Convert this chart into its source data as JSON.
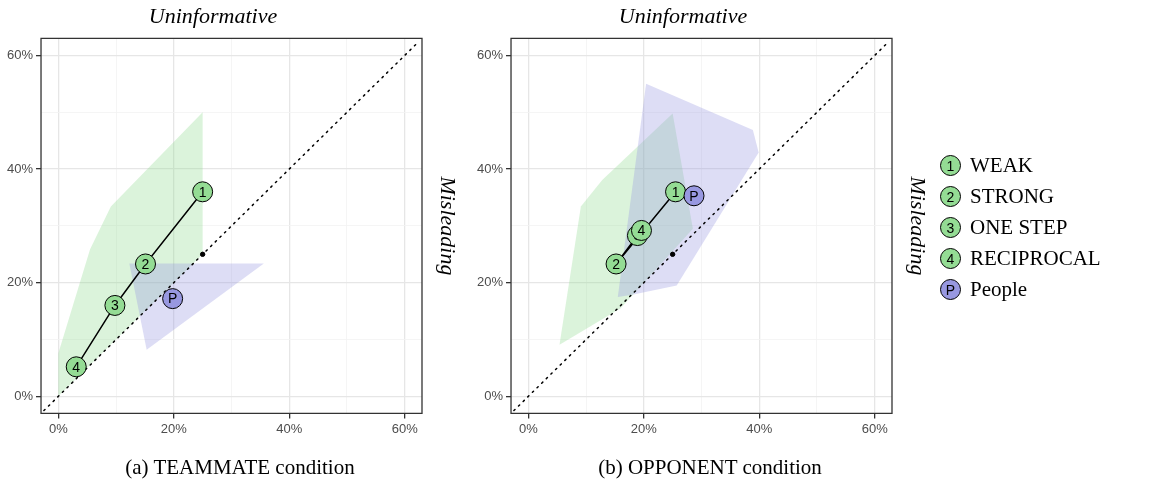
{
  "chart_data": [
    {
      "type": "scatter",
      "title": "Uninformative",
      "y2label": "Misleading",
      "xlim": [
        -3,
        63
      ],
      "ylim": [
        -3,
        63
      ],
      "xticks": [
        {
          "value": 0,
          "label": "0%"
        },
        {
          "value": 10,
          "label": null
        },
        {
          "value": 20,
          "label": "20%"
        },
        {
          "value": 30,
          "label": null
        },
        {
          "value": 40,
          "label": "40%"
        },
        {
          "value": 50,
          "label": null
        },
        {
          "value": 60,
          "label": "60%"
        }
      ],
      "yticks": [
        {
          "value": 0,
          "label": "0%"
        },
        {
          "value": 10,
          "label": null
        },
        {
          "value": 20,
          "label": "20%"
        },
        {
          "value": 30,
          "label": null
        },
        {
          "value": 40,
          "label": "40%"
        },
        {
          "value": 50,
          "label": null
        },
        {
          "value": 60,
          "label": "60%"
        }
      ],
      "grid": true,
      "series": [
        {
          "type": "area",
          "color": "#94dc94",
          "x": [
            0,
            0,
            5.5,
            9.1,
            25,
            25
          ],
          "values": [
            0,
            7.6,
            25.9,
            33.4,
            50,
            25
          ]
        },
        {
          "type": "area",
          "color": "#9898e0",
          "x": [
            12.3,
            35.6,
            15.3
          ],
          "values": [
            23.4,
            23.4,
            8.2
          ]
        },
        {
          "type": "line",
          "color": "#000000",
          "line_style": "dotted",
          "x": [
            -2.5,
            62.5
          ],
          "values": [
            -2.5,
            62.5
          ]
        },
        {
          "type": "scatter",
          "color": "#000000",
          "x": [
            25
          ],
          "values": [
            25
          ]
        },
        {
          "type": "line",
          "color": "#000000",
          "line_style": "solid",
          "x": [
            25,
            15.1,
            9.8,
            3.1
          ],
          "values": [
            36,
            23.3,
            16,
            5.2
          ]
        },
        {
          "type": "scatter",
          "color": "#94dc94",
          "x": [
            25
          ],
          "values": [
            36
          ]
        },
        {
          "type": "scatter",
          "color": "#94dc94",
          "x": [
            15.1
          ],
          "values": [
            23.3
          ]
        },
        {
          "type": "scatter",
          "color": "#94dc94",
          "x": [
            9.8
          ],
          "values": [
            16
          ]
        },
        {
          "type": "scatter",
          "color": "#94dc94",
          "x": [
            3.1
          ],
          "values": [
            5.2
          ]
        },
        {
          "type": "scatter",
          "color": "#9898e0",
          "x": [
            19.8
          ],
          "values": [
            17.2
          ]
        }
      ],
      "annotations": [
        {
          "text": "1",
          "x": 25,
          "y": 36
        },
        {
          "text": "2",
          "x": 15.1,
          "y": 23.3
        },
        {
          "text": "3",
          "x": 9.8,
          "y": 16
        },
        {
          "text": "4",
          "x": 3.1,
          "y": 5.2
        },
        {
          "text": "P",
          "x": 19.8,
          "y": 17.2
        },
        "(a) TEAMMATE condition"
      ]
    },
    {
      "type": "scatter",
      "title": "Uninformative",
      "y2label": "Misleading",
      "xlim": [
        -3,
        63
      ],
      "ylim": [
        -3,
        63
      ],
      "xticks": [
        {
          "value": 0,
          "label": "0%"
        },
        {
          "value": 10,
          "label": null
        },
        {
          "value": 20,
          "label": "20%"
        },
        {
          "value": 30,
          "label": null
        },
        {
          "value": 40,
          "label": "40%"
        },
        {
          "value": 50,
          "label": null
        },
        {
          "value": 60,
          "label": "60%"
        }
      ],
      "yticks": [
        {
          "value": 0,
          "label": "0%"
        },
        {
          "value": 10,
          "label": null
        },
        {
          "value": 20,
          "label": "20%"
        },
        {
          "value": 30,
          "label": null
        },
        {
          "value": 40,
          "label": "40%"
        },
        {
          "value": 50,
          "label": null
        },
        {
          "value": 60,
          "label": "60%"
        }
      ],
      "grid": true,
      "legend": "right",
      "series": [
        {
          "type": "area",
          "color": "#94dc94",
          "x": [
            5.4,
            9.1,
            12.8,
            25,
            28.5,
            16
          ],
          "values": [
            9.1,
            33.4,
            38.1,
            49.8,
            29.5,
            15.5
          ]
        },
        {
          "type": "area",
          "color": "#9898e0",
          "x": [
            15.5,
            20.4,
            38.9,
            39.9,
            25.7,
            18
          ],
          "values": [
            17.5,
            55,
            46.9,
            42.9,
            19.5,
            17.9
          ]
        },
        {
          "type": "line",
          "color": "#000000",
          "line_style": "dotted",
          "x": [
            -2.5,
            62.5
          ],
          "values": [
            -2.5,
            62.5
          ]
        },
        {
          "type": "scatter",
          "color": "#000000",
          "x": [
            25
          ],
          "values": [
            25
          ]
        },
        {
          "type": "line",
          "color": "#000000",
          "line_style": "solid",
          "x": [
            25.5,
            15.2,
            18.9,
            19.6
          ],
          "values": [
            36,
            23.3,
            28.3,
            29.2
          ]
        },
        {
          "type": "scatter",
          "name": "WEAK",
          "color": "#94dc94",
          "x": [
            25.5
          ],
          "values": [
            36
          ]
        },
        {
          "type": "scatter",
          "name": "STRONG",
          "color": "#94dc94",
          "x": [
            15.2
          ],
          "values": [
            23.3
          ]
        },
        {
          "type": "scatter",
          "name": "ONE STEP",
          "color": "#94dc94",
          "x": [
            18.9
          ],
          "values": [
            28.3
          ]
        },
        {
          "type": "scatter",
          "name": "RECIPROCAL",
          "color": "#94dc94",
          "x": [
            19.6
          ],
          "values": [
            29.2
          ]
        },
        {
          "type": "scatter",
          "name": "People",
          "color": "#9898e0",
          "x": [
            28.7
          ],
          "values": [
            35.3
          ]
        }
      ],
      "annotations": [
        {
          "text": "1",
          "x": 25.5,
          "y": 36
        },
        {
          "text": "2",
          "x": 15.2,
          "y": 23.3
        },
        {
          "text": "3",
          "x": 18.9,
          "y": 28.3
        },
        {
          "text": "4",
          "x": 19.6,
          "y": 29.2
        },
        {
          "text": "P",
          "x": 28.7,
          "y": 35.3
        },
        "(b) OPPONENT condition"
      ]
    }
  ]
}
